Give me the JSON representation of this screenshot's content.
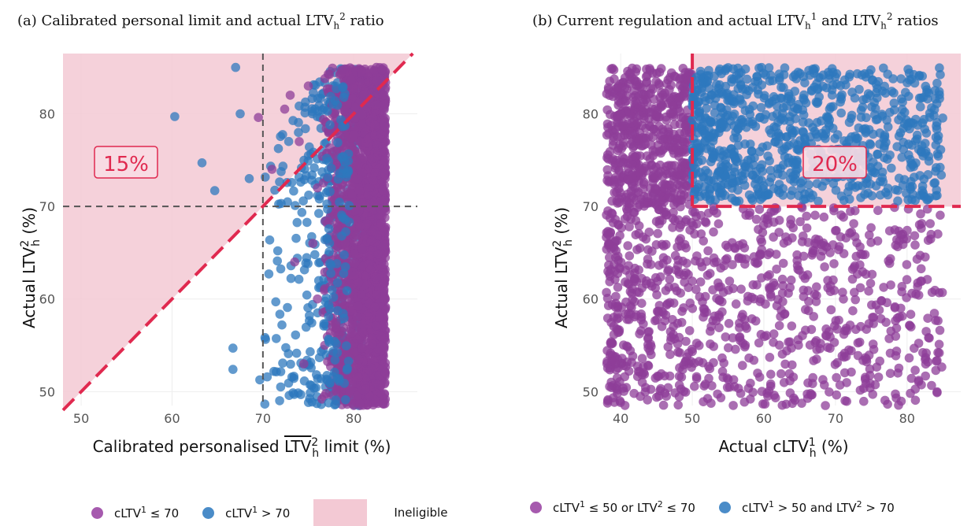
{
  "colors": {
    "purple": "#8e3d98",
    "blue": "#2e78be",
    "ineligible": "#f3c9d4",
    "red_line": "#e0294f",
    "grey_line": "#555555"
  },
  "chart_data": [
    {
      "panel": "a",
      "type": "scatter",
      "title": "(a) Calibrated personal limit and actual LTV²ₕ ratio",
      "xlabel": "Calibrated personalised LTV̄²ₕ limit (%)",
      "ylabel": "Actual LTV²ₕ (%)",
      "xlim": [
        48,
        87
      ],
      "ylim": [
        48.5,
        86.5
      ],
      "xticks": [
        "50",
        "60",
        "70",
        "80"
      ],
      "yticks": [
        "50",
        "60",
        "70",
        "80"
      ],
      "grid": true,
      "reference_lines": {
        "vertical_x": 70,
        "horizontal_y": 70,
        "diagonal": "y = x"
      },
      "shaded_region": "Ineligible (above diagonal)",
      "annotation": "15%",
      "series": [
        {
          "label": "cLTV¹ ≤ 70",
          "color": "#8e3d98",
          "cluster_x": [
            76.5,
            83.5
          ],
          "y_range": [
            48.5,
            85
          ],
          "n_points": 2200,
          "extra_points": [
            [
              69.5,
              79.6
            ],
            [
              71,
              74
            ],
            [
              72.4,
              80.5
            ],
            [
              73,
              82
            ],
            [
              74,
              77
            ],
            [
              75,
              83
            ],
            [
              76,
              72
            ],
            [
              75.5,
              66
            ],
            [
              76,
              60
            ],
            [
              76.8,
              55
            ],
            [
              78,
              70
            ],
            [
              73.5,
              64
            ],
            [
              74.5,
              53
            ],
            [
              83.5,
              69.5
            ],
            [
              83,
              56
            ]
          ]
        },
        {
          "label": "cLTV¹ > 70",
          "color": "#2e78be",
          "scatter_x": [
            66.5,
            79.5
          ],
          "y_range": [
            48.5,
            85
          ],
          "n_points": 460,
          "extra_points": [
            [
              60.3,
              79.7
            ],
            [
              63.3,
              74.7
            ],
            [
              64.7,
              71.7
            ],
            [
              66.7,
              54.7
            ],
            [
              66.7,
              52.4
            ],
            [
              67,
              85
            ],
            [
              68.5,
              73
            ],
            [
              67.5,
              80
            ]
          ]
        }
      ],
      "legend": [
        {
          "label": "cLTV¹ ≤ 70",
          "color": "#8e3d98"
        },
        {
          "label": "cLTV¹ > 70",
          "color": "#2e78be"
        },
        {
          "label": "Ineligible",
          "color": "#f3c9d4"
        }
      ]
    },
    {
      "panel": "b",
      "type": "scatter",
      "title": "(b) Current regulation and actual LTV¹ₕ and LTV²ₕ ratios",
      "xlabel": "Actual cLTV¹ₕ (%)",
      "ylabel": "Actual LTV²ₕ (%)",
      "xlim": [
        38,
        87.5
      ],
      "ylim": [
        48.5,
        86.5
      ],
      "xticks": [
        "40",
        "50",
        "60",
        "70",
        "80"
      ],
      "yticks": [
        "50",
        "60",
        "70",
        "80"
      ],
      "grid": true,
      "reference_lines": {
        "vertical_x": 50,
        "horizontal_y": 70
      },
      "shaded_region": "Ineligible (cLTV¹ > 50 and LTV² > 70)",
      "annotation": "20%",
      "series": [
        {
          "label": "cLTV¹ ≤ 50 or LTV² ≤ 70",
          "color": "#8e3d98",
          "x_range": [
            38,
            85
          ],
          "y_range": [
            48.5,
            85
          ],
          "n_points": 1500
        },
        {
          "label": "cLTV¹ > 50 and LTV² > 70",
          "color": "#2e78be",
          "x_range": [
            50,
            85
          ],
          "y_range": [
            70,
            85
          ],
          "n_points": 850
        }
      ],
      "legend": [
        {
          "label": "cLTV¹ ≤ 50 or LTV² ≤ 70",
          "color": "#8e3d98"
        },
        {
          "label": "cLTV¹ > 50 and LTV² > 70",
          "color": "#2e78be"
        }
      ]
    }
  ]
}
